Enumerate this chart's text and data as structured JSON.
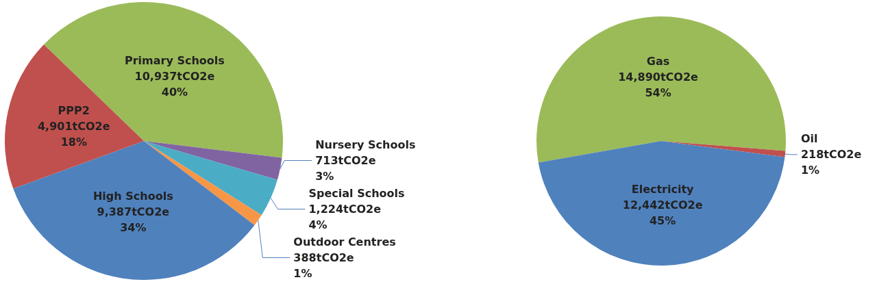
{
  "chart_data": [
    {
      "type": "pie",
      "categories": [
        "Primary Schools",
        "Nursery Schools",
        "Special Schools",
        "Outdoor Centres",
        "High Schools",
        "PPP2"
      ],
      "values": [
        10937,
        713,
        1224,
        388,
        9387,
        4901
      ],
      "value_labels": [
        "10,937tCO2e\n40%",
        "713tCO2e\n3%",
        "1,224tCO2e\n4%",
        "388tCO2e\n1%",
        "9,387tCO2e\n34%",
        "4,901tCO2e\n18%"
      ],
      "colors": [
        "#9bbb59",
        "#8064a2",
        "#4bacc6",
        "#f79646",
        "#4f81bd",
        "#c0504d"
      ],
      "legend": false
    },
    {
      "type": "pie",
      "categories": [
        "Gas",
        "Oil",
        "Electricity"
      ],
      "values": [
        14890,
        218,
        12442
      ],
      "value_labels": [
        "14,890tCO2e\n54%",
        "218tCO2e\n1%",
        "12,442tCO2e\n45%"
      ],
      "colors": [
        "#9bbb59",
        "#c0504d",
        "#4f81bd"
      ],
      "legend": false
    }
  ]
}
